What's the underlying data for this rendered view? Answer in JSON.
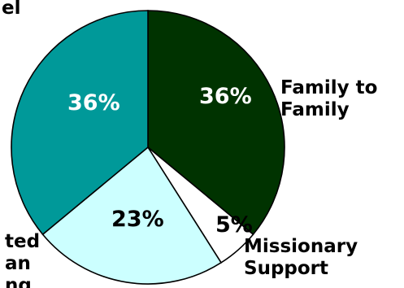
{
  "chart_data": {
    "type": "pie",
    "slices": [
      {
        "label_lines": [
          "Family to",
          "Family"
        ],
        "value": 36,
        "value_label": "36%",
        "color": "#003300",
        "text_color": "#ffffff"
      },
      {
        "label_lines": [
          "Missionary",
          "Support"
        ],
        "value": 5,
        "value_label": "5%",
        "color": "#ffffff",
        "text_color": "#000000"
      },
      {
        "label_lines": [
          "ted",
          "an",
          "ng"
        ],
        "value": 23,
        "value_label": "23%",
        "color": "#ccffff",
        "text_color": "#000000"
      },
      {
        "label_lines": [],
        "value": 36,
        "value_label": "36%",
        "color": "#009999",
        "text_color": "#ffffff"
      }
    ],
    "top_label_fragment": "el",
    "legend": "none",
    "grid": false
  }
}
